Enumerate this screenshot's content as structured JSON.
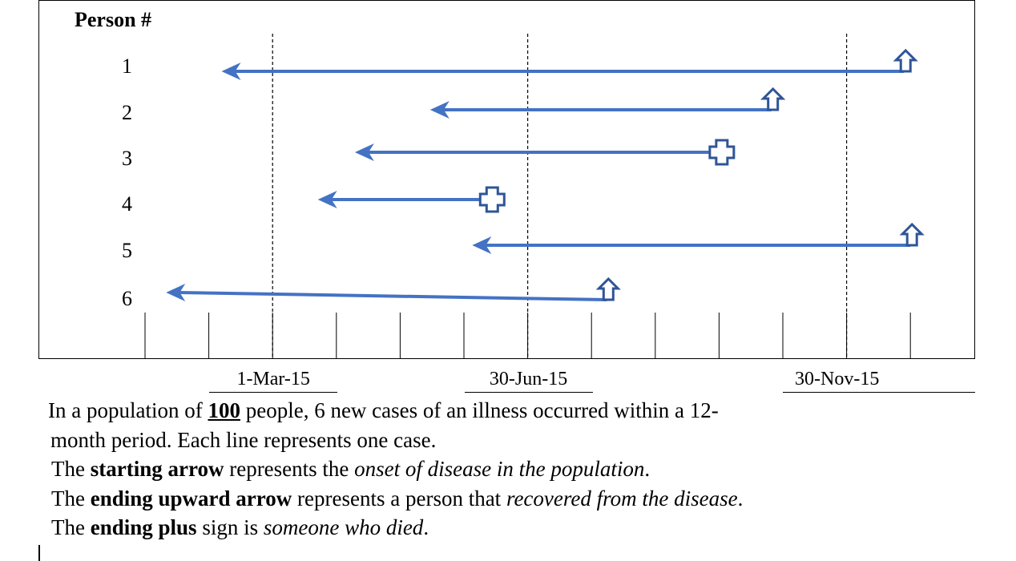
{
  "chart_data": {
    "type": "timeline",
    "y_header": "Person #",
    "x_labels": [
      {
        "label": "1-Mar-15",
        "month": 2
      },
      {
        "label": "30-Jun-15",
        "month": 6
      },
      {
        "label": "30-Nov-15",
        "month": 11
      }
    ],
    "x_range_months": [
      0,
      12
    ],
    "persons": [
      {
        "id": "1",
        "onset_month": 1.2,
        "end_month": 11.9,
        "outcome": "recovered"
      },
      {
        "id": "2",
        "onset_month": 4.47,
        "end_month": 9.82,
        "outcome": "recovered"
      },
      {
        "id": "3",
        "onset_month": 3.29,
        "end_month": 8.88,
        "outcome": "died"
      },
      {
        "id": "4",
        "onset_month": 2.71,
        "end_month": 5.28,
        "outcome": "died"
      },
      {
        "id": "5",
        "onset_month": 5.13,
        "end_month": 12.0,
        "outcome": "recovered"
      },
      {
        "id": "6",
        "onset_month": 0.33,
        "end_month": 7.24,
        "outcome": "recovered"
      }
    ],
    "colors": {
      "line": "#4472C4",
      "marker": "#2F5597"
    }
  },
  "text": {
    "l1a": "In a population of ",
    "l1b": "100",
    "l1c": " people, 6 new cases of an illness occurred within a 12-",
    "l2": "month period. Each line represents one case.",
    "l3a": "The ",
    "l3b": "starting arrow",
    "l3c": " represents the ",
    "l3d": "onset of disease in the population",
    "l3e": ".",
    "l4a": "The ",
    "l4b": "ending upward arrow",
    "l4c": " represents a person that ",
    "l4d": "recovered from the disease",
    "l4e": ".",
    "l5a": "The ",
    "l5b": "ending plus",
    "l5c": " sign is ",
    "l5d": "someone who died",
    "l5e": "."
  }
}
